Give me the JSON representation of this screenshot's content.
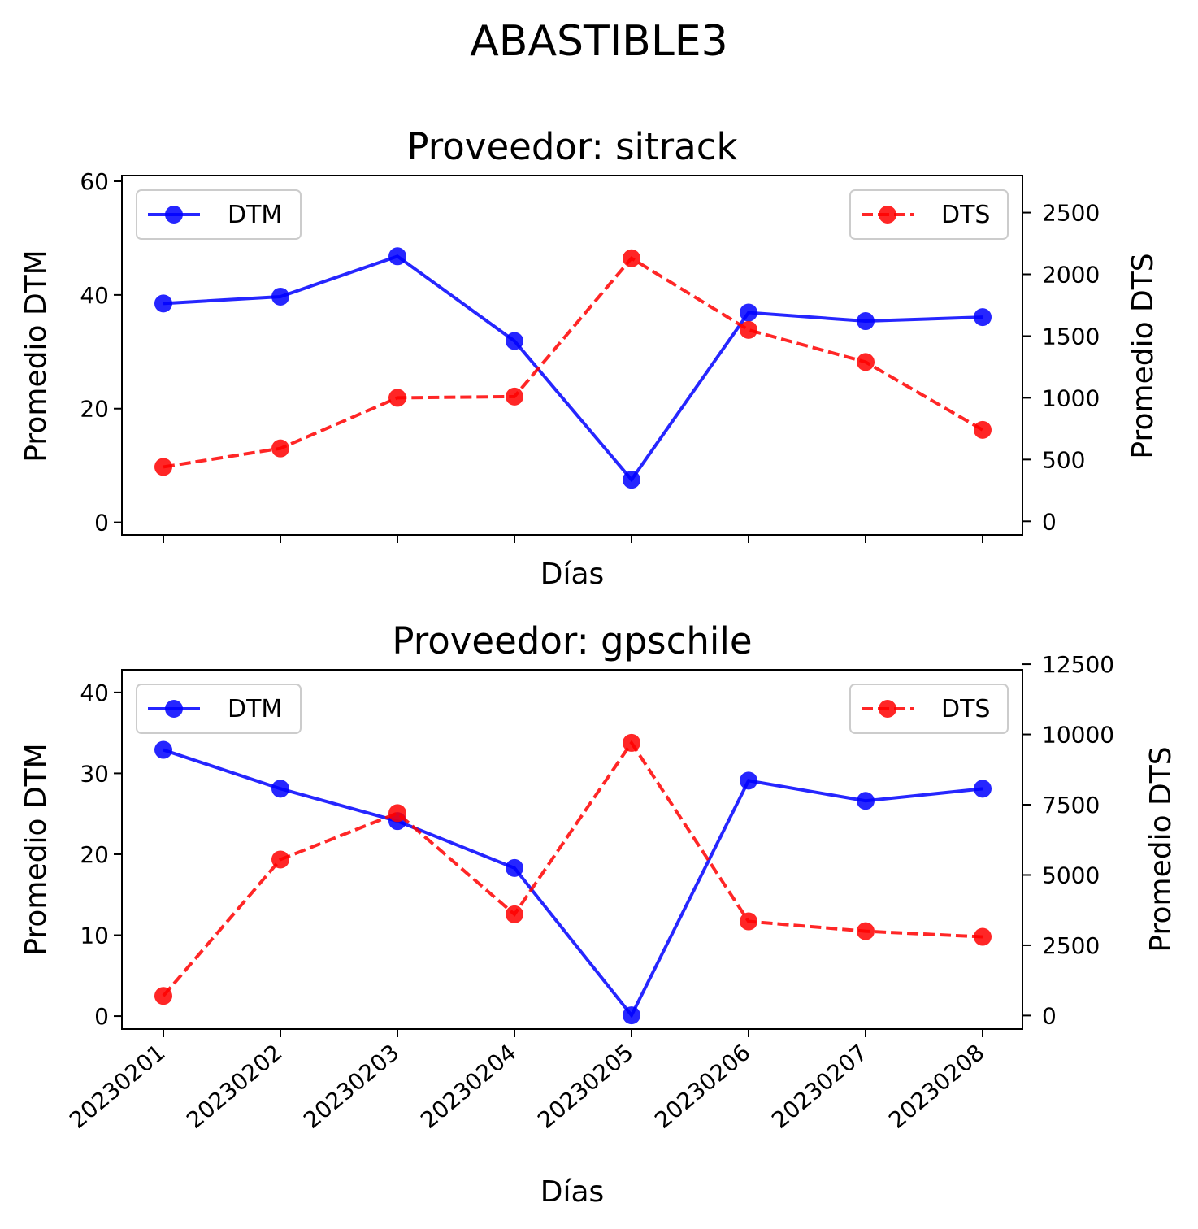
{
  "figure": {
    "suptitle": "ABASTIBLE3"
  },
  "chart_data": [
    {
      "type": "line",
      "title": "Proveedor: sitrack",
      "xlabel": "Días",
      "ylabel_left": "Promedio DTM",
      "ylabel_right": "Promedio DTS",
      "categories": [
        "20230201",
        "20230202",
        "20230203",
        "20230204",
        "20230205",
        "20230206",
        "20230207",
        "20230208"
      ],
      "show_xticklabels": false,
      "ylim_left": [
        -2.2,
        61
      ],
      "yticks_left": [
        0,
        20,
        40,
        60
      ],
      "ylim_right": [
        -110,
        2800
      ],
      "yticks_right": [
        0,
        500,
        1000,
        1500,
        2000,
        2500
      ],
      "grid": false,
      "series": [
        {
          "name": "DTM",
          "axis": "left",
          "color": "#0000ff",
          "linestyle": "solid",
          "marker": "circle",
          "values": [
            38.5,
            39.7,
            46.8,
            31.9,
            7.5,
            36.9,
            35.4,
            36.1
          ]
        },
        {
          "name": "DTS",
          "axis": "right",
          "color": "#ff0000",
          "linestyle": "dashed",
          "marker": "circle",
          "values": [
            440,
            590,
            1000,
            1010,
            2130,
            1550,
            1290,
            740
          ]
        }
      ],
      "legend_left": {
        "label": "DTM",
        "position": "upper-left"
      },
      "legend_right": {
        "label": "DTS",
        "position": "upper-right"
      }
    },
    {
      "type": "line",
      "title": "Proveedor: gpschile",
      "xlabel": "Días",
      "ylabel_left": "Promedio DTM",
      "ylabel_right": "Promedio DTS",
      "categories": [
        "20230201",
        "20230202",
        "20230203",
        "20230204",
        "20230205",
        "20230206",
        "20230207",
        "20230208"
      ],
      "show_xticklabels": true,
      "ylim_left": [
        -1.6,
        42.8
      ],
      "yticks_left": [
        0,
        10,
        20,
        30,
        40
      ],
      "ylim_right": [
        -480,
        12300
      ],
      "yticks_right": [
        0,
        2500,
        5000,
        7500,
        10000,
        12500
      ],
      "grid": false,
      "series": [
        {
          "name": "DTM",
          "axis": "left",
          "color": "#0000ff",
          "linestyle": "solid",
          "marker": "circle",
          "values": [
            32.9,
            28.1,
            24.1,
            18.3,
            0.1,
            29.1,
            26.6,
            28.1
          ]
        },
        {
          "name": "DTS",
          "axis": "right",
          "color": "#ff0000",
          "linestyle": "dashed",
          "marker": "circle",
          "values": [
            700,
            5550,
            7200,
            3600,
            9700,
            3350,
            3000,
            2800
          ]
        }
      ],
      "legend_left": {
        "label": "DTM",
        "position": "upper-left"
      },
      "legend_right": {
        "label": "DTS",
        "position": "upper-right"
      }
    }
  ]
}
